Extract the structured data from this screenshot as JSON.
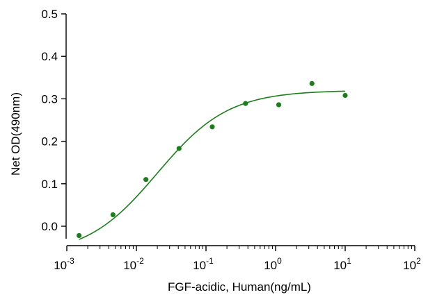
{
  "chart_data": {
    "type": "scatter",
    "title": "",
    "xlabel": "FGF-acidic, Human(ng/mL)",
    "ylabel": "Net OD(490nm)",
    "x_scale": "log",
    "xlim": [
      0.001,
      100
    ],
    "ylim": [
      -0.05,
      0.5
    ],
    "x_ticks": [
      {
        "value": 0.001,
        "base": "10",
        "exp": "-3"
      },
      {
        "value": 0.01,
        "base": "10",
        "exp": "-2"
      },
      {
        "value": 0.1,
        "base": "10",
        "exp": "-1"
      },
      {
        "value": 1,
        "base": "10",
        "exp": "0"
      },
      {
        "value": 10,
        "base": "10",
        "exp": "1"
      },
      {
        "value": 100,
        "base": "10",
        "exp": "2"
      }
    ],
    "y_ticks": [
      {
        "value": 0.0,
        "label": "0.0"
      },
      {
        "value": 0.1,
        "label": "0.1"
      },
      {
        "value": 0.2,
        "label": "0.2"
      },
      {
        "value": 0.3,
        "label": "0.3"
      },
      {
        "value": 0.4,
        "label": "0.4"
      },
      {
        "value": 0.5,
        "label": "0.5"
      }
    ],
    "grid": false,
    "legend": "none",
    "color": "#1a7f1a",
    "series": [
      {
        "x": [
          0.0015,
          0.0046,
          0.0137,
          0.041,
          0.123,
          0.37,
          1.11,
          3.33,
          10
        ],
        "y": [
          -0.022,
          0.027,
          0.11,
          0.183,
          0.234,
          0.289,
          0.286,
          0.336,
          0.308
        ]
      }
    ],
    "fit": {
      "type": "4PL",
      "bottom": -0.07,
      "top": 0.32,
      "ec50": 0.02,
      "hill": 0.85
    }
  }
}
